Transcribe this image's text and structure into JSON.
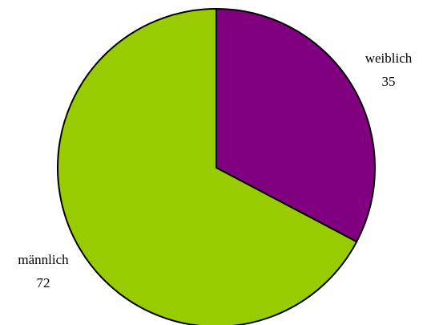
{
  "chart_data": {
    "type": "pie",
    "title": "",
    "slices": [
      {
        "label": "weiblich",
        "value": 35,
        "value_label": "35",
        "color": "#800080"
      },
      {
        "label": "männlich",
        "value": 72,
        "value_label": "72",
        "color": "#99CC00"
      }
    ],
    "start_angle_deg": 0,
    "direction": "clockwise"
  }
}
